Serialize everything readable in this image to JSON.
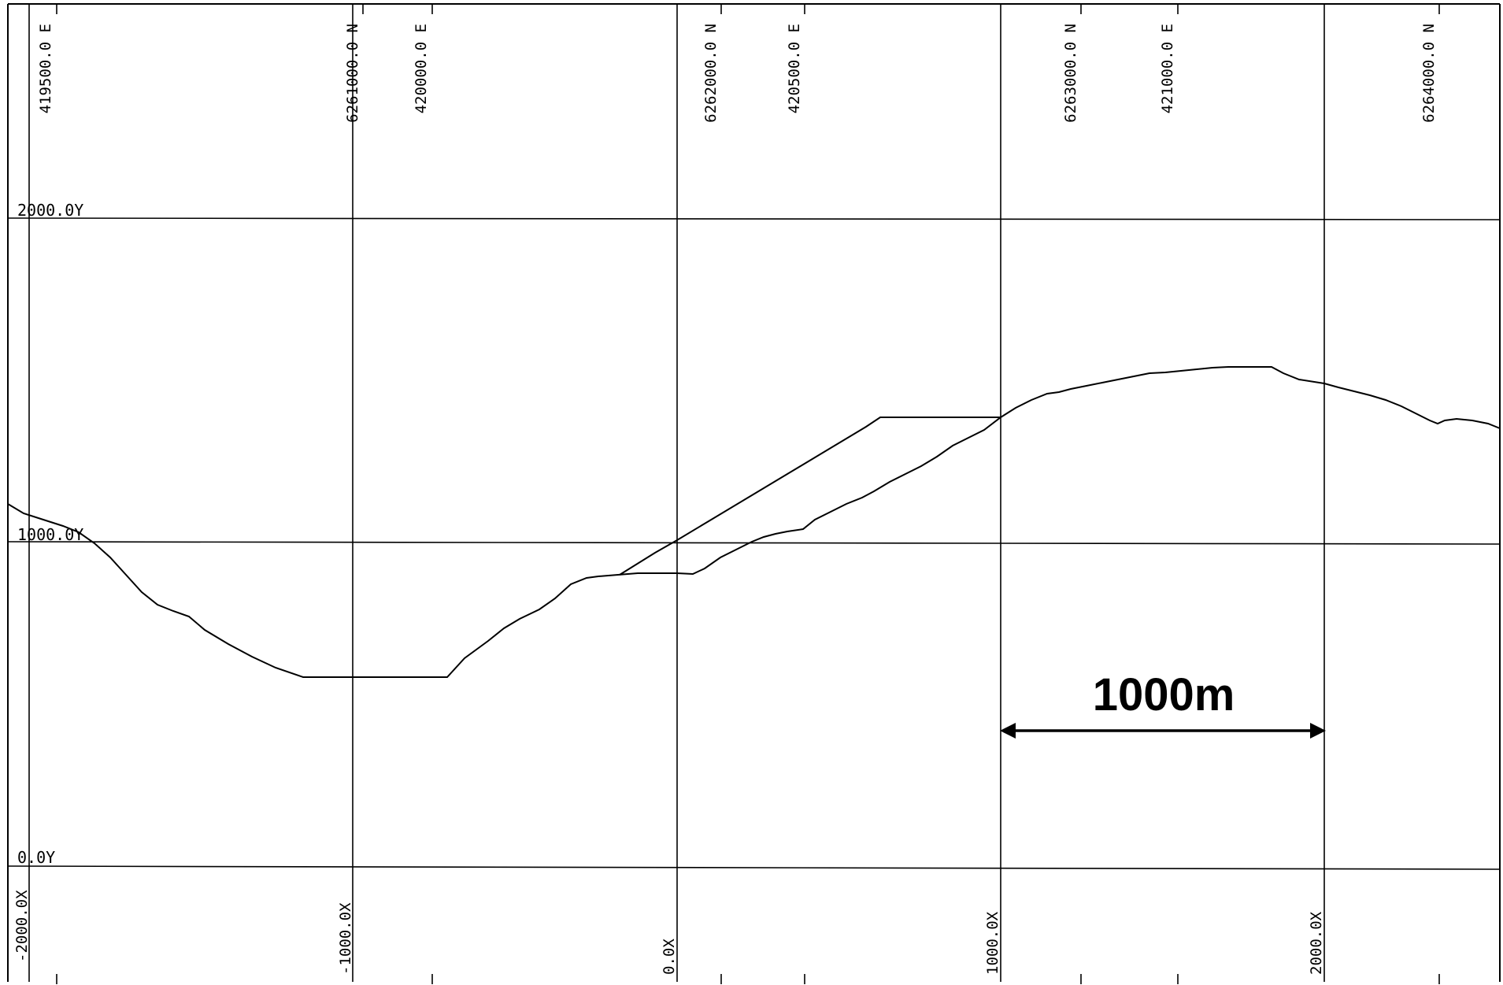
{
  "drawing": {
    "top_labels": [
      {
        "id": "easting-419500",
        "text": "419500.0 E"
      },
      {
        "id": "northing-6261000",
        "text": "6261000.0 N"
      },
      {
        "id": "easting-420000",
        "text": "420000.0 E"
      },
      {
        "id": "northing-6262000",
        "text": "6262000.0 N"
      },
      {
        "id": "easting-420500",
        "text": "420500.0 E"
      },
      {
        "id": "northing-6263000",
        "text": "6263000.0 N"
      },
      {
        "id": "easting-421000",
        "text": "421000.0 E"
      },
      {
        "id": "northing-6264000",
        "text": "6264000.0 N"
      }
    ],
    "y_labels": [
      {
        "id": "y-2000",
        "text": "2000.0Y"
      },
      {
        "id": "y-1000",
        "text": "1000.0Y"
      },
      {
        "id": "y-0",
        "text": "0.0Y"
      }
    ],
    "x_labels": [
      {
        "id": "x-neg2000",
        "text": "-2000.0X"
      },
      {
        "id": "x-neg1000",
        "text": "-1000.0X"
      },
      {
        "id": "x-0",
        "text": "0.0X"
      },
      {
        "id": "x-1000",
        "text": "1000.0X"
      },
      {
        "id": "x-2000",
        "text": "2000.0X"
      }
    ],
    "scale_bar": {
      "label": "1000m",
      "length_m": 1000
    }
  },
  "colors": {
    "line": "#000000",
    "background": "#ffffff"
  }
}
